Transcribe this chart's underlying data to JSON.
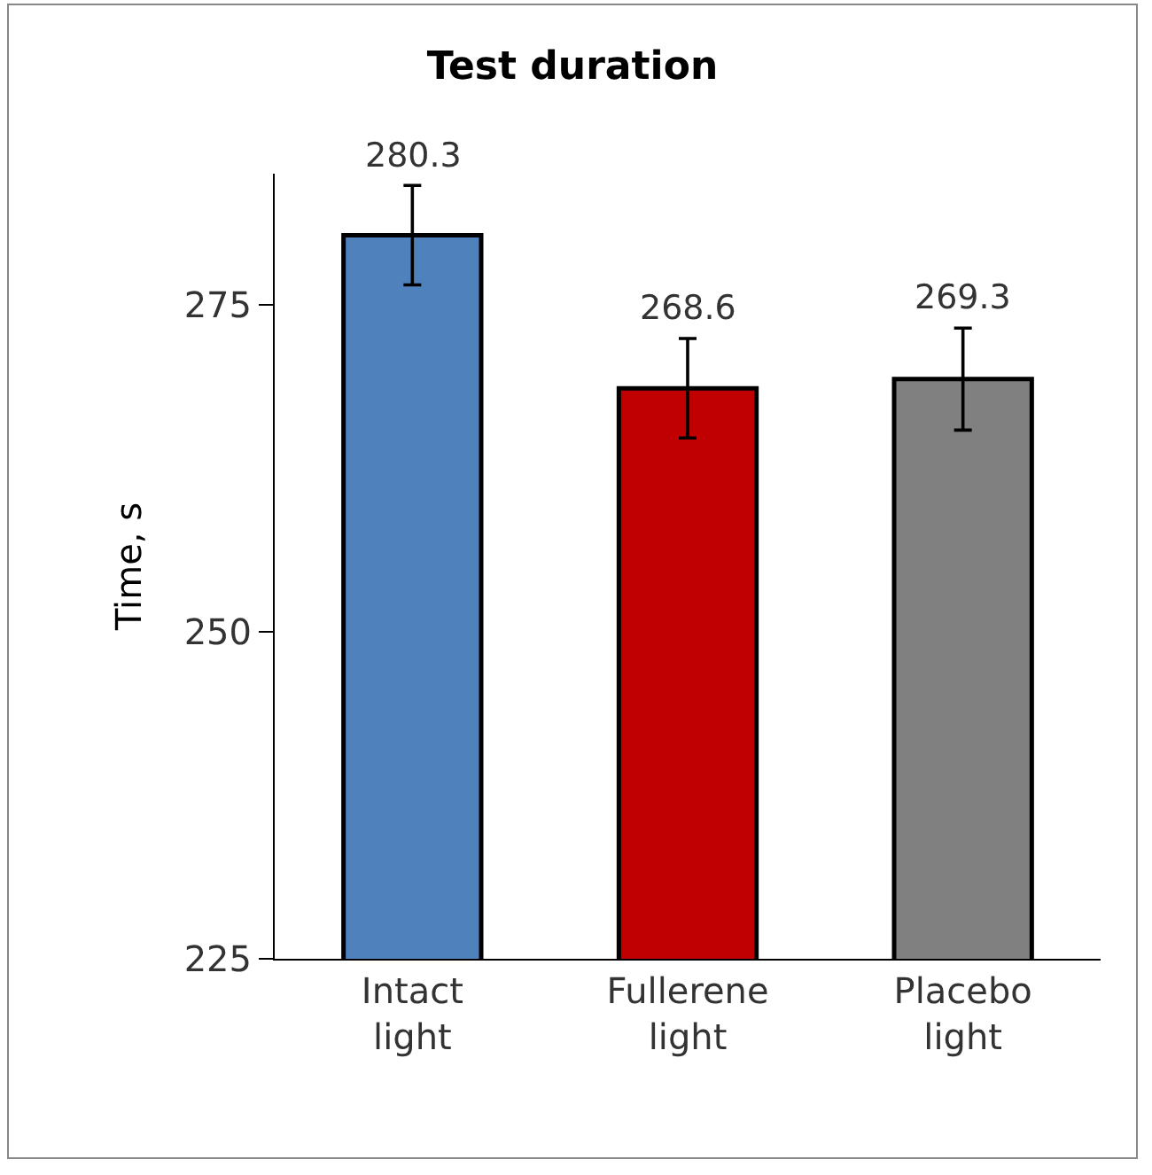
{
  "chart_data": {
    "type": "bar",
    "title": "Test duration",
    "ylabel": "Time, s",
    "categories": [
      "Intact\nlight",
      "Fullerene\nlight",
      "Placebo\nlight"
    ],
    "values": [
      280.3,
      268.6,
      269.3
    ],
    "colors": [
      "#4f81bd",
      "#c00000",
      "#808080"
    ],
    "errors": [
      3.8,
      3.8,
      3.9
    ],
    "ylim": [
      225,
      285
    ],
    "yticks": [
      225,
      250,
      275
    ],
    "data_labels": true
  }
}
